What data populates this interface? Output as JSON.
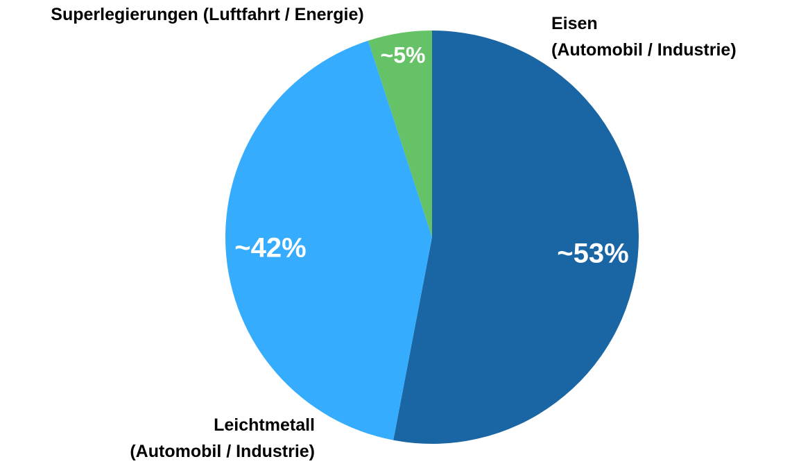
{
  "chart_data": {
    "type": "pie",
    "categories": [
      "Eisen\n(Automobil / Industrie)",
      "Leichtmetall\n(Automobil / Industrie)",
      "Superlegierungen (Luftfahrt / Energie)"
    ],
    "values": [
      53,
      42,
      5
    ],
    "value_labels": [
      "~53%",
      "~42%",
      "~5%"
    ],
    "colors": [
      "#1a65a3",
      "#35acfd",
      "#66c266"
    ]
  }
}
